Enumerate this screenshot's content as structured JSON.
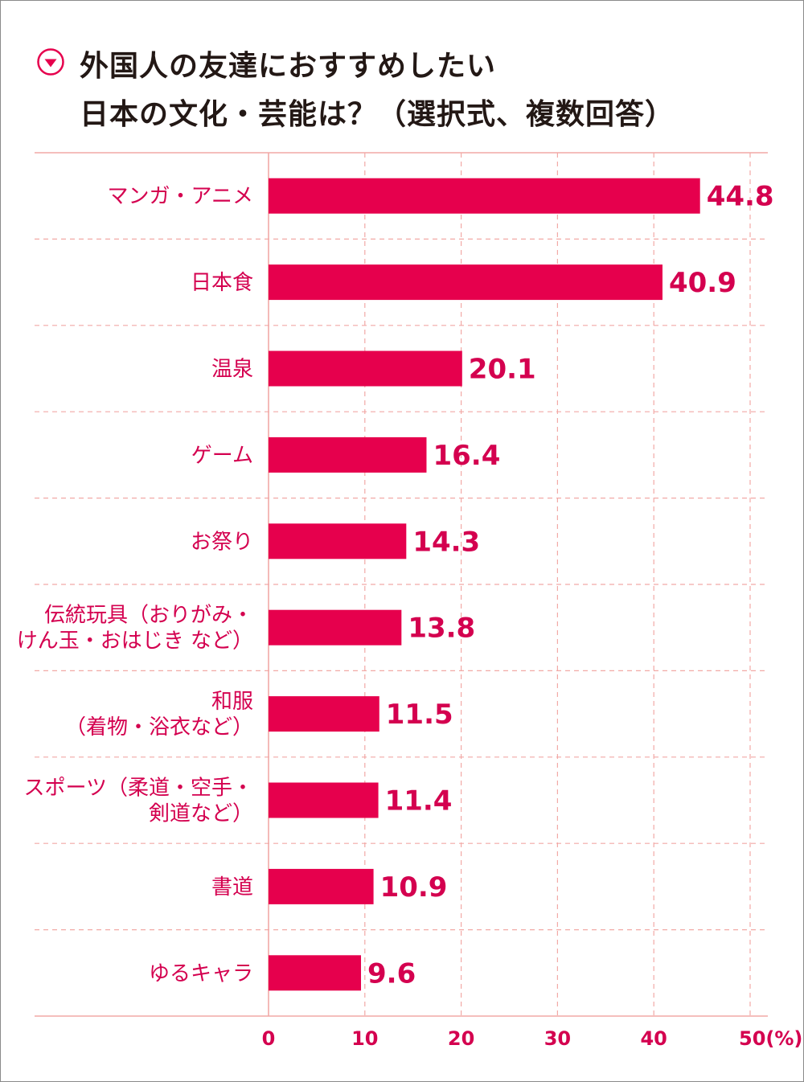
{
  "title": {
    "line1": "外国人の友達におすすめしたい",
    "line2": "日本の文化・芸能は？（選択式、複数回答）"
  },
  "colors": {
    "bar": "#e6004d",
    "label": "#d4004f",
    "grid": "#f2a9a6",
    "title": "#231815"
  },
  "icon": "chevron-down-circle-icon",
  "chart_data": {
    "type": "bar",
    "orientation": "horizontal",
    "categories": [
      [
        "マンガ・アニメ"
      ],
      [
        "日本食"
      ],
      [
        "温泉"
      ],
      [
        "ゲーム"
      ],
      [
        "お祭り"
      ],
      [
        "伝統玩具（おりがみ・",
        "けん玉・おはじき など）"
      ],
      [
        "和服",
        "（着物・浴衣など）"
      ],
      [
        "スポーツ（柔道・空手・",
        "剣道など）"
      ],
      [
        "書道"
      ],
      [
        "ゆるキャラ"
      ]
    ],
    "values": [
      44.8,
      40.9,
      20.1,
      16.4,
      14.3,
      13.8,
      11.5,
      11.4,
      10.9,
      9.6
    ],
    "value_labels": [
      "44.8",
      "40.9",
      "20.1",
      "16.4",
      "14.3",
      "13.8",
      "11.5",
      "11.4",
      "10.9",
      "9.6"
    ],
    "xlim": [
      0,
      50
    ],
    "xticks": [
      0,
      10,
      20,
      30,
      40,
      50
    ],
    "xtick_labels": [
      "0",
      "10",
      "20",
      "30",
      "40",
      "50(%)"
    ],
    "grid": true,
    "unit": "%"
  }
}
